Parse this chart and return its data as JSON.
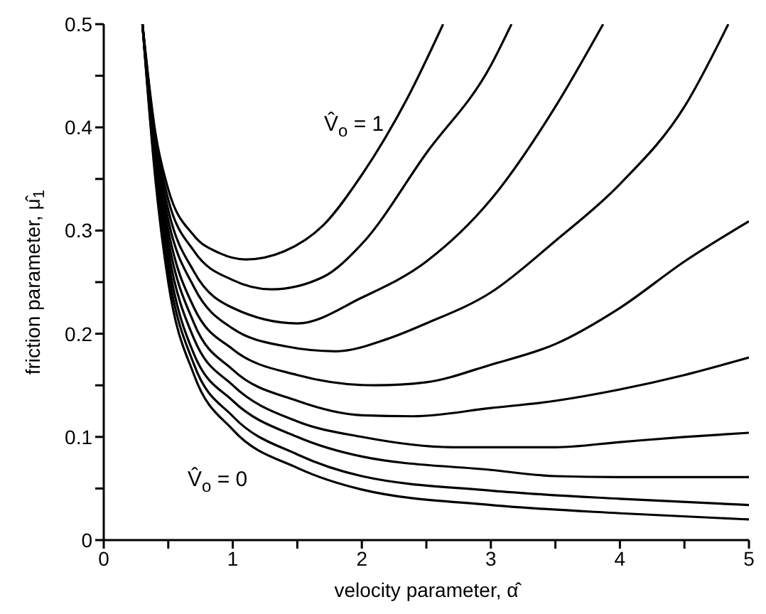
{
  "chart_data": {
    "type": "line",
    "xlabel": "velocity parameter, α̂",
    "ylabel": "friction parameter, μ̂$_{1}$",
    "xlim": [
      0,
      5
    ],
    "ylim": [
      0,
      0.5
    ],
    "xticks": [
      0,
      {
        "value": 0.5,
        "label": null
      },
      1,
      {
        "value": 1.5,
        "label": null
      },
      2,
      {
        "value": 2.5,
        "label": null
      },
      3,
      {
        "value": 3.5,
        "label": null
      },
      4,
      {
        "value": 4.5,
        "label": null
      },
      5
    ],
    "yticks": [
      0,
      {
        "value": 0.05,
        "label": null
      },
      0.1,
      {
        "value": 0.15,
        "label": null
      },
      0.2,
      {
        "value": 0.25,
        "label": null
      },
      0.3,
      {
        "value": 0.35,
        "label": null
      },
      0.4,
      {
        "value": 0.45,
        "label": null
      },
      0.5
    ],
    "annotations": [
      "V̂$_{o}$ = 1",
      "V̂$_{o}$ = 0"
    ],
    "series": [
      {
        "color": "#000000",
        "x": [
          0.3,
          0.4,
          0.5,
          0.7,
          0.9,
          1.1,
          1.4,
          1.7,
          2,
          2.36,
          2.63
        ],
        "values": [
          0.5,
          0.395,
          0.34,
          0.295,
          0.278,
          0.272,
          0.28,
          0.305,
          0.354,
          0.43,
          0.5
        ]
      },
      {
        "color": "#000000",
        "x": [
          0.3,
          0.4,
          0.5,
          0.7,
          1,
          1.3,
          1.7,
          2,
          2.5,
          3,
          3.16
        ],
        "values": [
          0.5,
          0.39,
          0.33,
          0.28,
          0.252,
          0.243,
          0.255,
          0.287,
          0.375,
          0.46,
          0.5
        ]
      },
      {
        "color": "#000000",
        "x": [
          0.3,
          0.4,
          0.5,
          0.7,
          1,
          1.5,
          2,
          2.5,
          3,
          3.5,
          3.87
        ],
        "values": [
          0.5,
          0.385,
          0.32,
          0.26,
          0.225,
          0.21,
          0.235,
          0.27,
          0.33,
          0.42,
          0.5
        ]
      },
      {
        "color": "#000000",
        "x": [
          0.3,
          0.4,
          0.5,
          0.7,
          1,
          1.4,
          1.8,
          2.2,
          2.5,
          3,
          3.5,
          4,
          4.5,
          4.84
        ],
        "values": [
          0.5,
          0.38,
          0.31,
          0.245,
          0.205,
          0.188,
          0.183,
          0.195,
          0.21,
          0.24,
          0.29,
          0.345,
          0.42,
          0.5
        ]
      },
      {
        "color": "#000000",
        "x": [
          0.3,
          0.4,
          0.5,
          0.7,
          1,
          1.5,
          2.1,
          2.5,
          3,
          3.5,
          4,
          4.5,
          5
        ],
        "values": [
          0.5,
          0.375,
          0.3,
          0.225,
          0.185,
          0.16,
          0.15,
          0.153,
          0.17,
          0.19,
          0.225,
          0.27,
          0.309
        ]
      },
      {
        "color": "#000000",
        "x": [
          0.3,
          0.4,
          0.5,
          0.7,
          1,
          1.5,
          2,
          2.4,
          3,
          3.5,
          4,
          4.5,
          5
        ],
        "values": [
          0.5,
          0.37,
          0.29,
          0.21,
          0.165,
          0.135,
          0.121,
          0.12,
          0.128,
          0.135,
          0.146,
          0.16,
          0.177
        ]
      },
      {
        "color": "#000000",
        "x": [
          0.3,
          0.4,
          0.5,
          0.7,
          1,
          1.5,
          2,
          2.7,
          3.5,
          4,
          4.5,
          5
        ],
        "values": [
          0.5,
          0.365,
          0.28,
          0.195,
          0.15,
          0.115,
          0.1,
          0.09,
          0.09,
          0.095,
          0.1,
          0.104
        ]
      },
      {
        "color": "#000000",
        "x": [
          0.3,
          0.4,
          0.5,
          0.7,
          1,
          1.5,
          2,
          3,
          3.5,
          4,
          5
        ],
        "values": [
          0.5,
          0.36,
          0.27,
          0.18,
          0.135,
          0.1,
          0.081,
          0.068,
          0.062,
          0.061,
          0.061
        ]
      },
      {
        "color": "#000000",
        "x": [
          0.3,
          0.4,
          0.5,
          0.7,
          1,
          1.5,
          2,
          3,
          4,
          5
        ],
        "values": [
          0.5,
          0.355,
          0.26,
          0.17,
          0.12,
          0.083,
          0.062,
          0.048,
          0.04,
          0.034
        ]
      },
      {
        "color": "#000000",
        "x": [
          0.3,
          0.4,
          0.5,
          0.7,
          1,
          1.5,
          2,
          3,
          4,
          5
        ],
        "values": [
          0.5,
          0.35,
          0.25,
          0.16,
          0.107,
          0.07,
          0.049,
          0.034,
          0.026,
          0.02
        ]
      }
    ]
  }
}
